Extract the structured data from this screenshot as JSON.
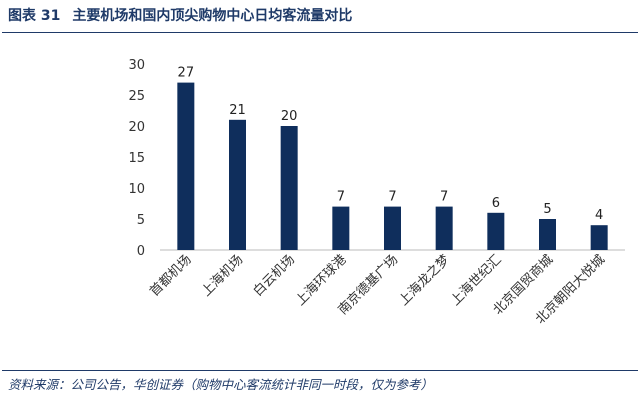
{
  "header": {
    "figure_no": "图表 31",
    "title": "主要机场和国内顶尖购物中心日均客流量对比"
  },
  "source": "资料来源：公司公告，华创证券（购物中心客流统计非同一时段，仅为参考）",
  "chart_data": {
    "type": "bar",
    "categories": [
      "首都机场",
      "上海机场",
      "白云机场",
      "上海环球港",
      "南京德基广场",
      "上海龙之梦",
      "上海世纪汇",
      "北京国贸商城",
      "北京朝阳大悦城"
    ],
    "values": [
      27,
      21,
      20,
      7,
      7,
      7,
      6,
      5,
      4
    ],
    "ylim": [
      0,
      30
    ],
    "yticks": [
      0,
      5,
      10,
      15,
      20,
      25,
      30
    ],
    "grid": false,
    "bar_color": "#0f2e5c"
  }
}
